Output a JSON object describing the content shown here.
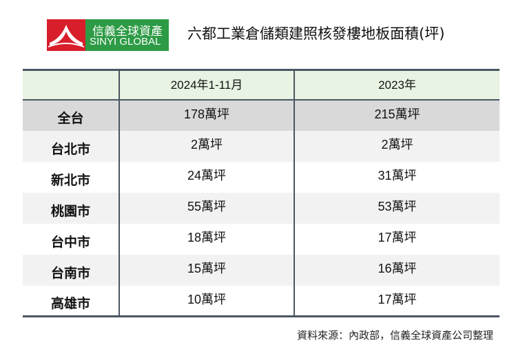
{
  "logo": {
    "chinese": "信義全球資產",
    "english": "SINYI GLOBAL",
    "colors": {
      "red": "#d81e2a",
      "green": "#2d9b45"
    }
  },
  "title": "六都工業倉儲類建照核發樓地板面積(坪)",
  "table": {
    "headers": [
      "",
      "2024年1-11月",
      "2023年"
    ],
    "rows": [
      {
        "region": "全台",
        "y2024": "178萬坪",
        "y2023": "215萬坪"
      },
      {
        "region": "台北市",
        "y2024": "2萬坪",
        "y2023": "2萬坪"
      },
      {
        "region": "新北市",
        "y2024": "24萬坪",
        "y2023": "31萬坪"
      },
      {
        "region": "桃園市",
        "y2024": "55萬坪",
        "y2023": "53萬坪"
      },
      {
        "region": "台中市",
        "y2024": "18萬坪",
        "y2023": "17萬坪"
      },
      {
        "region": "台南市",
        "y2024": "15萬坪",
        "y2023": "16萬坪"
      },
      {
        "region": "高雄市",
        "y2024": "10萬坪",
        "y2023": "17萬坪"
      }
    ]
  },
  "source": "資料來源：內政部，信義全球資產公司整理"
}
